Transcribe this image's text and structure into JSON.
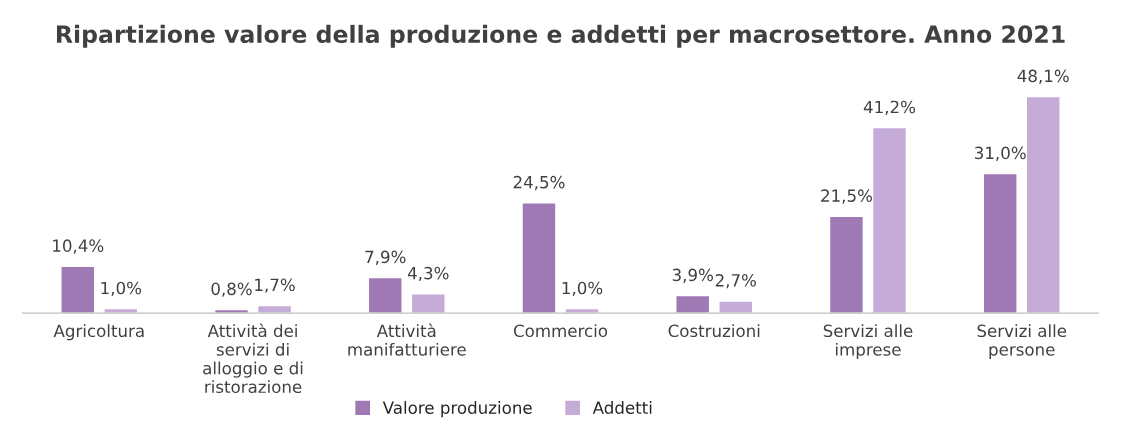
{
  "chart_data": {
    "type": "bar",
    "title": "Ripartizione valore della produzione e addetti per macrosettore. Anno 2021",
    "categories": [
      "Agricoltura",
      "Attività dei\nservizi di\nalloggio e di\nristorazione",
      "Attività\nmanifatturiere",
      "Commercio",
      "Costruzioni",
      "Servizi alle\nimprese",
      "Servizi alle\npersone"
    ],
    "series": [
      {
        "name": "Valore produzione",
        "color": "#9e79b4",
        "values": [
          10.4,
          0.8,
          7.9,
          24.5,
          3.9,
          21.5,
          31.0
        ],
        "value_labels": [
          "10,4%",
          "0,8%",
          "7,9%",
          "24,5%",
          "3,9%",
          "21,5%",
          "31,0%"
        ]
      },
      {
        "name": "Addetti",
        "color": "#c5acd8",
        "values": [
          1.0,
          1.7,
          4.3,
          1.0,
          2.7,
          41.2,
          48.1
        ],
        "value_labels": [
          "1,0%",
          "1,7%",
          "4,3%",
          "1,0%",
          "2,7%",
          "41,2%",
          "48,1%"
        ]
      }
    ],
    "grid": false,
    "legend": "bottom"
  }
}
